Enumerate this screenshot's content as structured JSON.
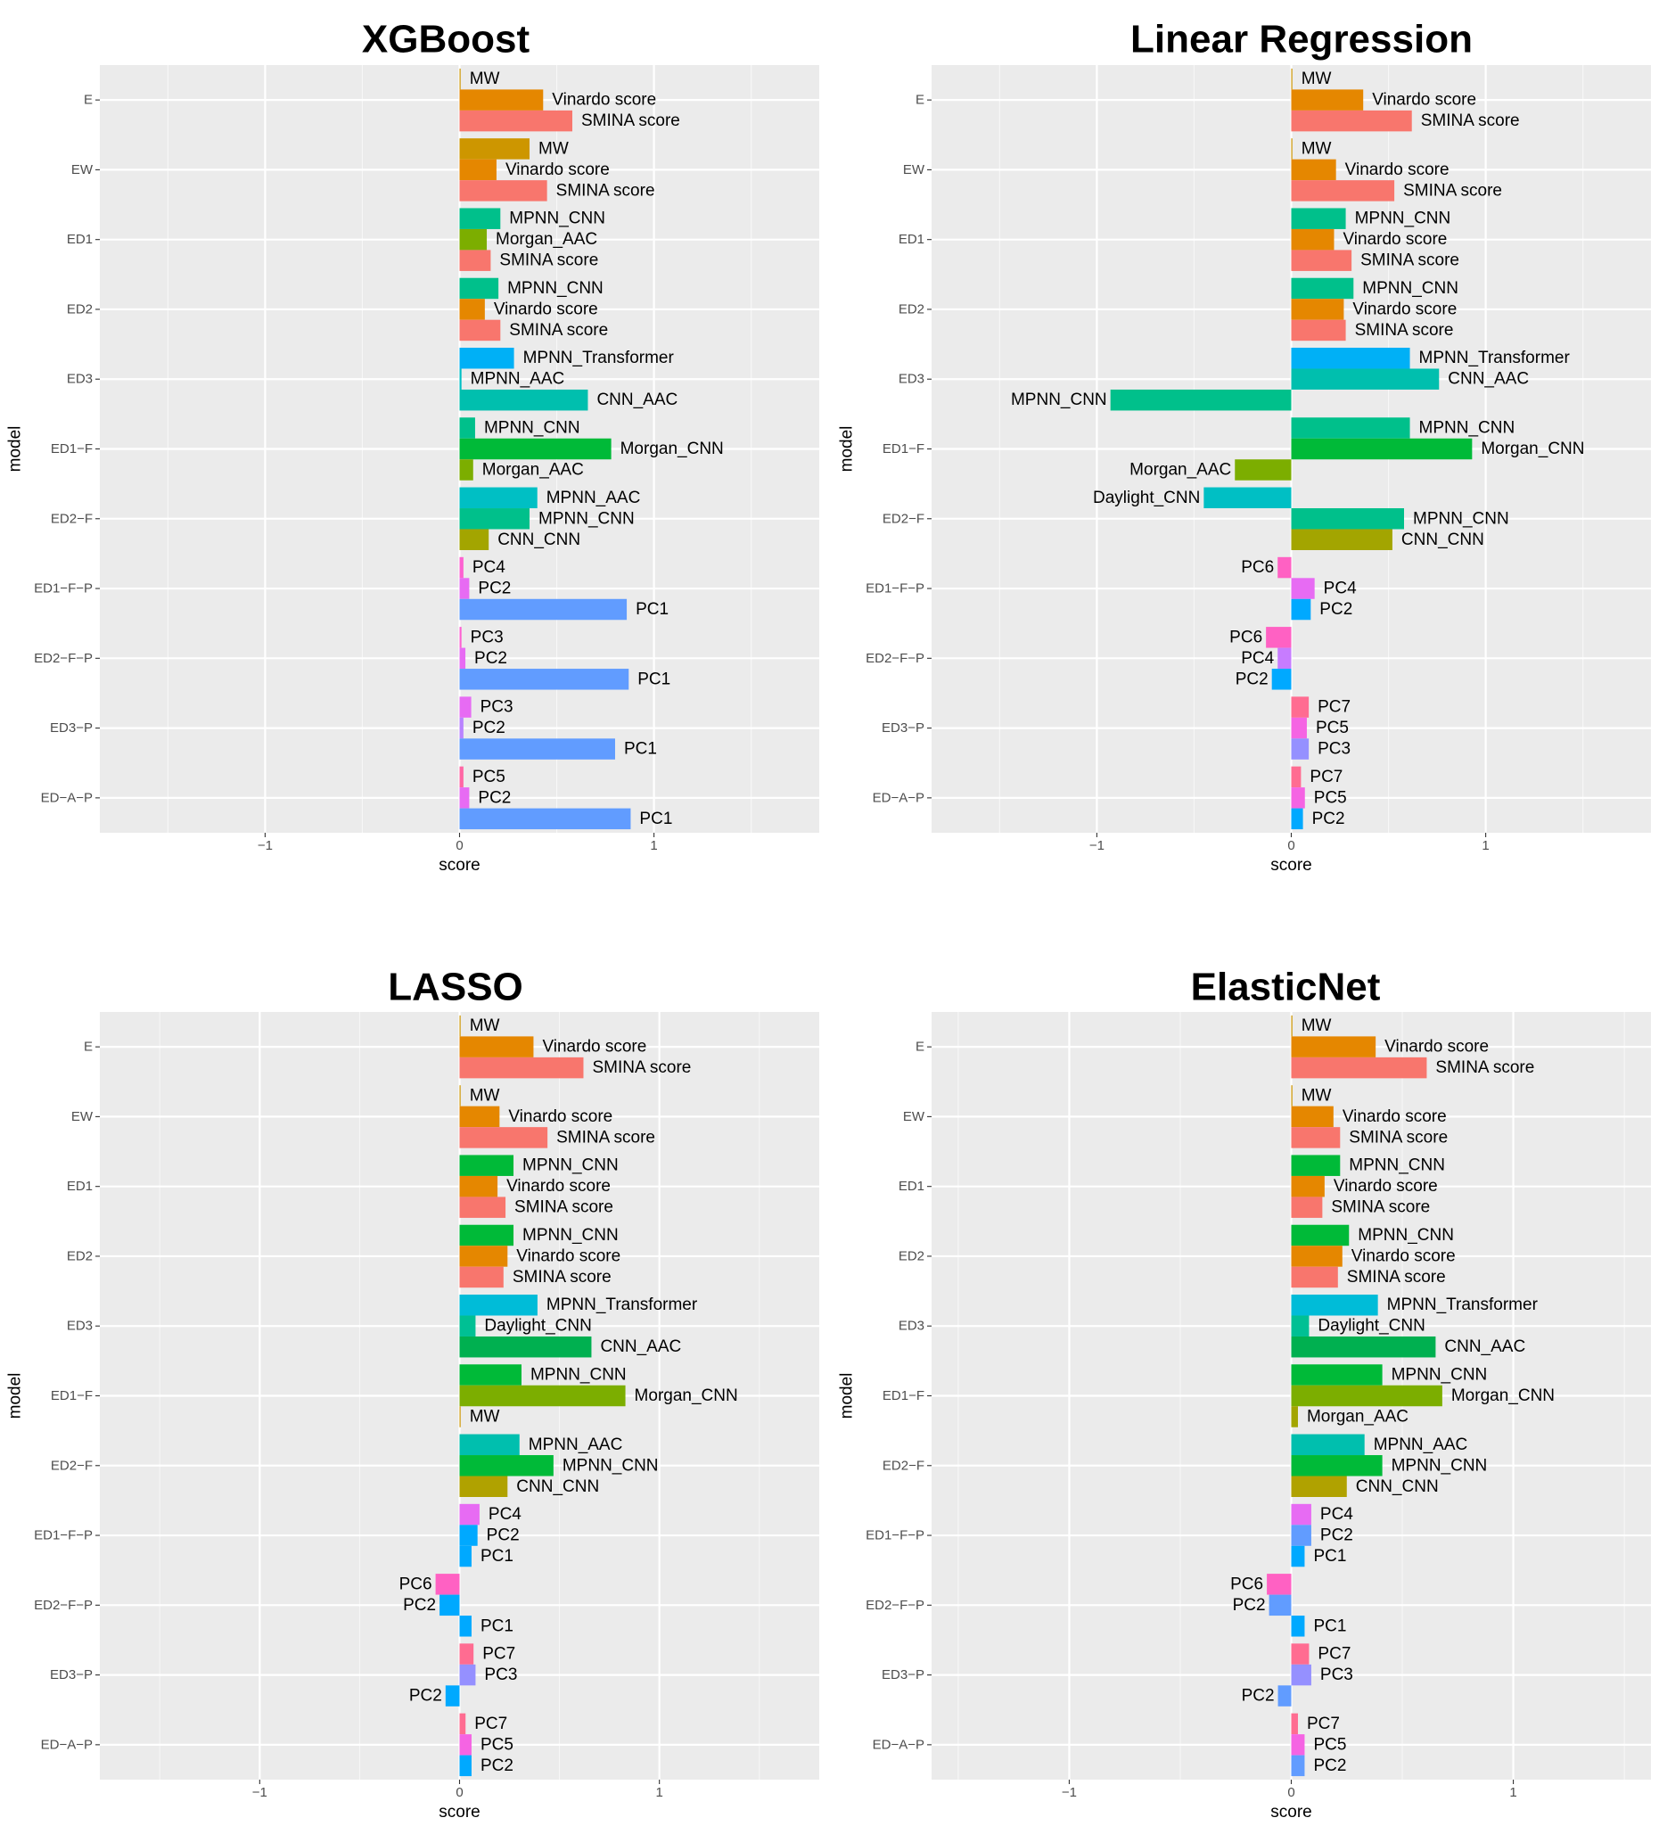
{
  "chart_data": [
    {
      "type": "bar",
      "orientation": "horizontal",
      "title": "XGBoost",
      "xlabel": "score",
      "ylabel": "model",
      "xlim": [
        -1.85,
        1.85
      ],
      "xticks": [
        -1,
        0,
        1
      ],
      "xtick_labels": [
        "−1",
        "0",
        "1"
      ],
      "categories": [
        "E",
        "EW",
        "ED1",
        "ED2",
        "ED3",
        "ED1−F",
        "ED2−F",
        "ED1−F−P",
        "ED2−F−P",
        "ED3−P",
        "ED−A−P"
      ],
      "groups": [
        [
          {
            "label": "MW",
            "value": 0.005,
            "color": "#cd9600"
          },
          {
            "label": "Vinardo score",
            "value": 0.43,
            "color": "#e58700"
          },
          {
            "label": "SMINA score",
            "value": 0.58,
            "color": "#f8766d"
          }
        ],
        [
          {
            "label": "MW",
            "value": 0.36,
            "color": "#cd9600"
          },
          {
            "label": "Vinardo score",
            "value": 0.19,
            "color": "#e58700"
          },
          {
            "label": "SMINA score",
            "value": 0.45,
            "color": "#f8766d"
          }
        ],
        [
          {
            "label": "MPNN_CNN",
            "value": 0.21,
            "color": "#00c08b"
          },
          {
            "label": "Morgan_AAC",
            "value": 0.14,
            "color": "#7cae00"
          },
          {
            "label": "SMINA score",
            "value": 0.16,
            "color": "#f8766d"
          }
        ],
        [
          {
            "label": "MPNN_CNN",
            "value": 0.2,
            "color": "#00c08b"
          },
          {
            "label": "Vinardo score",
            "value": 0.13,
            "color": "#e58700"
          },
          {
            "label": "SMINA score",
            "value": 0.21,
            "color": "#f8766d"
          }
        ],
        [
          {
            "label": "MPNN_Transformer",
            "value": 0.28,
            "color": "#00b0f6"
          },
          {
            "label": "MPNN_AAC",
            "value": 0.01,
            "color": "#00bfc4"
          },
          {
            "label": "CNN_AAC",
            "value": 0.66,
            "color": "#00bfae"
          }
        ],
        [
          {
            "label": "MPNN_CNN",
            "value": 0.08,
            "color": "#00c08b"
          },
          {
            "label": "Morgan_CNN",
            "value": 0.78,
            "color": "#00ba38"
          },
          {
            "label": "Morgan_AAC",
            "value": 0.07,
            "color": "#7cae00"
          }
        ],
        [
          {
            "label": "MPNN_AAC",
            "value": 0.4,
            "color": "#00bfc4"
          },
          {
            "label": "MPNN_CNN",
            "value": 0.36,
            "color": "#00c08b"
          },
          {
            "label": "CNN_CNN",
            "value": 0.15,
            "color": "#a3a500"
          }
        ],
        [
          {
            "label": "PC4",
            "value": 0.02,
            "color": "#fd61d1"
          },
          {
            "label": "PC2",
            "value": 0.05,
            "color": "#e76bf3"
          },
          {
            "label": "PC1",
            "value": 0.86,
            "color": "#619cff"
          }
        ],
        [
          {
            "label": "PC3",
            "value": 0.01,
            "color": "#fd61d1"
          },
          {
            "label": "PC2",
            "value": 0.03,
            "color": "#e76bf3"
          },
          {
            "label": "PC1",
            "value": 0.87,
            "color": "#619cff"
          }
        ],
        [
          {
            "label": "PC3",
            "value": 0.06,
            "color": "#e76bf3"
          },
          {
            "label": "PC2",
            "value": 0.02,
            "color": "#b983ff"
          },
          {
            "label": "PC1",
            "value": 0.8,
            "color": "#619cff"
          }
        ],
        [
          {
            "label": "PC5",
            "value": 0.02,
            "color": "#ff67a4"
          },
          {
            "label": "PC2",
            "value": 0.05,
            "color": "#e76bf3"
          },
          {
            "label": "PC1",
            "value": 0.88,
            "color": "#619cff"
          }
        ]
      ]
    },
    {
      "type": "bar",
      "orientation": "horizontal",
      "title": "Linear Regression",
      "xlabel": "score",
      "ylabel": "model",
      "xlim": [
        -1.85,
        1.85
      ],
      "xticks": [
        -1,
        0,
        1
      ],
      "xtick_labels": [
        "−1",
        "0",
        "1"
      ],
      "categories": [
        "E",
        "EW",
        "ED1",
        "ED2",
        "ED3",
        "ED1−F",
        "ED2−F",
        "ED1−F−P",
        "ED2−F−P",
        "ED3−P",
        "ED−A−P"
      ],
      "groups": [
        [
          {
            "label": "MW",
            "value": 0.005,
            "color": "#cd9600"
          },
          {
            "label": "Vinardo score",
            "value": 0.37,
            "color": "#e58700"
          },
          {
            "label": "SMINA score",
            "value": 0.62,
            "color": "#f8766d"
          }
        ],
        [
          {
            "label": "MW",
            "value": 0.005,
            "color": "#cd9600"
          },
          {
            "label": "Vinardo score",
            "value": 0.23,
            "color": "#e58700"
          },
          {
            "label": "SMINA score",
            "value": 0.53,
            "color": "#f8766d"
          }
        ],
        [
          {
            "label": "MPNN_CNN",
            "value": 0.28,
            "color": "#00c08b"
          },
          {
            "label": "Vinardo score",
            "value": 0.22,
            "color": "#e58700"
          },
          {
            "label": "SMINA score",
            "value": 0.31,
            "color": "#f8766d"
          }
        ],
        [
          {
            "label": "MPNN_CNN",
            "value": 0.32,
            "color": "#00c08b"
          },
          {
            "label": "Vinardo score",
            "value": 0.27,
            "color": "#e58700"
          },
          {
            "label": "SMINA score",
            "value": 0.28,
            "color": "#f8766d"
          }
        ],
        [
          {
            "label": "MPNN_Transformer",
            "value": 0.61,
            "color": "#00b0f6"
          },
          {
            "label": "CNN_AAC",
            "value": 0.76,
            "color": "#00bfae"
          },
          {
            "label": "MPNN_CNN",
            "value": -0.93,
            "color": "#00c08b"
          }
        ],
        [
          {
            "label": "MPNN_CNN",
            "value": 0.61,
            "color": "#00c08b"
          },
          {
            "label": "Morgan_CNN",
            "value": 0.93,
            "color": "#00ba38"
          },
          {
            "label": "Morgan_AAC",
            "value": -0.29,
            "color": "#7cae00"
          }
        ],
        [
          {
            "label": "Daylight_CNN",
            "value": -0.45,
            "color": "#00bfc4"
          },
          {
            "label": "MPNN_CNN",
            "value": 0.58,
            "color": "#00c08b"
          },
          {
            "label": "CNN_CNN",
            "value": 0.52,
            "color": "#a3a500"
          }
        ],
        [
          {
            "label": "PC6",
            "value": -0.07,
            "color": "#ff61c3"
          },
          {
            "label": "PC4",
            "value": 0.12,
            "color": "#e76bf3"
          },
          {
            "label": "PC2",
            "value": 0.1,
            "color": "#00a9ff"
          }
        ],
        [
          {
            "label": "PC6",
            "value": -0.13,
            "color": "#ff61c3"
          },
          {
            "label": "PC4",
            "value": -0.07,
            "color": "#c77cff"
          },
          {
            "label": "PC2",
            "value": -0.1,
            "color": "#00a9ff"
          }
        ],
        [
          {
            "label": "PC7",
            "value": 0.09,
            "color": "#ff6c91"
          },
          {
            "label": "PC5",
            "value": 0.08,
            "color": "#f564e3"
          },
          {
            "label": "PC3",
            "value": 0.09,
            "color": "#9590ff"
          }
        ],
        [
          {
            "label": "PC7",
            "value": 0.05,
            "color": "#ff6c91"
          },
          {
            "label": "PC5",
            "value": 0.07,
            "color": "#f564e3"
          },
          {
            "label": "PC2",
            "value": 0.06,
            "color": "#00a9ff"
          }
        ]
      ]
    },
    {
      "type": "bar",
      "orientation": "horizontal",
      "title": "LASSO",
      "xlabel": "score",
      "ylabel": "model",
      "xlim": [
        -1.8,
        1.8
      ],
      "xticks": [
        -1,
        0,
        1
      ],
      "xtick_labels": [
        "−1",
        "0",
        "1"
      ],
      "categories": [
        "E",
        "EW",
        "ED1",
        "ED2",
        "ED3",
        "ED1−F",
        "ED2−F",
        "ED1−F−P",
        "ED2−F−P",
        "ED3−P",
        "ED−A−P"
      ],
      "groups": [
        [
          {
            "label": "MW",
            "value": 0.005,
            "color": "#cd9600"
          },
          {
            "label": "Vinardo score",
            "value": 0.37,
            "color": "#e58700"
          },
          {
            "label": "SMINA score",
            "value": 0.62,
            "color": "#f8766d"
          }
        ],
        [
          {
            "label": "MW",
            "value": 0.005,
            "color": "#cd9600"
          },
          {
            "label": "Vinardo score",
            "value": 0.2,
            "color": "#e58700"
          },
          {
            "label": "SMINA score",
            "value": 0.44,
            "color": "#f8766d"
          }
        ],
        [
          {
            "label": "MPNN_CNN",
            "value": 0.27,
            "color": "#00ba38"
          },
          {
            "label": "Vinardo score",
            "value": 0.19,
            "color": "#e58700"
          },
          {
            "label": "SMINA score",
            "value": 0.23,
            "color": "#f8766d"
          }
        ],
        [
          {
            "label": "MPNN_CNN",
            "value": 0.27,
            "color": "#00ba38"
          },
          {
            "label": "Vinardo score",
            "value": 0.24,
            "color": "#e58700"
          },
          {
            "label": "SMINA score",
            "value": 0.22,
            "color": "#f8766d"
          }
        ],
        [
          {
            "label": "MPNN_Transformer",
            "value": 0.39,
            "color": "#00bcd8"
          },
          {
            "label": "Daylight_CNN",
            "value": 0.08,
            "color": "#00c094"
          },
          {
            "label": "CNN_AAC",
            "value": 0.66,
            "color": "#00b050"
          }
        ],
        [
          {
            "label": "MPNN_CNN",
            "value": 0.31,
            "color": "#00ba38"
          },
          {
            "label": "Morgan_CNN",
            "value": 0.83,
            "color": "#7cae00"
          },
          {
            "label": "MW",
            "value": 0.005,
            "color": "#cd9600"
          }
        ],
        [
          {
            "label": "MPNN_AAC",
            "value": 0.3,
            "color": "#00bfae"
          },
          {
            "label": "MPNN_CNN",
            "value": 0.47,
            "color": "#00ba38"
          },
          {
            "label": "CNN_CNN",
            "value": 0.24,
            "color": "#b0a200"
          }
        ],
        [
          {
            "label": "PC4",
            "value": 0.1,
            "color": "#e76bf3"
          },
          {
            "label": "PC2",
            "value": 0.09,
            "color": "#00a9ff"
          },
          {
            "label": "PC1",
            "value": 0.06,
            "color": "#00a9ff"
          }
        ],
        [
          {
            "label": "PC6",
            "value": -0.12,
            "color": "#ff61c3"
          },
          {
            "label": "PC2",
            "value": -0.1,
            "color": "#00a9ff"
          },
          {
            "label": "PC1",
            "value": 0.06,
            "color": "#00a9ff"
          }
        ],
        [
          {
            "label": "PC7",
            "value": 0.07,
            "color": "#ff6c91"
          },
          {
            "label": "PC3",
            "value": 0.08,
            "color": "#9590ff"
          },
          {
            "label": "PC2",
            "value": -0.07,
            "color": "#00a9ff"
          }
        ],
        [
          {
            "label": "PC7",
            "value": 0.03,
            "color": "#ff6c91"
          },
          {
            "label": "PC5",
            "value": 0.06,
            "color": "#f564e3"
          },
          {
            "label": "PC2",
            "value": 0.06,
            "color": "#00a9ff"
          }
        ]
      ]
    },
    {
      "type": "bar",
      "orientation": "horizontal",
      "title": "ElasticNet",
      "xlabel": "score",
      "ylabel": "model",
      "xlim": [
        -1.62,
        1.62
      ],
      "xticks": [
        -1,
        0,
        1
      ],
      "xtick_labels": [
        "−1",
        "0",
        "1"
      ],
      "categories": [
        "E",
        "EW",
        "ED1",
        "ED2",
        "ED3",
        "ED1−F",
        "ED2−F",
        "ED1−F−P",
        "ED2−F−P",
        "ED3−P",
        "ED−A−P"
      ],
      "groups": [
        [
          {
            "label": "MW",
            "value": 0.005,
            "color": "#cd9600"
          },
          {
            "label": "Vinardo score",
            "value": 0.38,
            "color": "#e58700"
          },
          {
            "label": "SMINA score",
            "value": 0.61,
            "color": "#f8766d"
          }
        ],
        [
          {
            "label": "MW",
            "value": 0.005,
            "color": "#cd9600"
          },
          {
            "label": "Vinardo score",
            "value": 0.19,
            "color": "#e58700"
          },
          {
            "label": "SMINA score",
            "value": 0.22,
            "color": "#f8766d"
          }
        ],
        [
          {
            "label": "MPNN_CNN",
            "value": 0.22,
            "color": "#00ba38"
          },
          {
            "label": "Vinardo score",
            "value": 0.15,
            "color": "#e58700"
          },
          {
            "label": "SMINA score",
            "value": 0.14,
            "color": "#f8766d"
          }
        ],
        [
          {
            "label": "MPNN_CNN",
            "value": 0.26,
            "color": "#00ba38"
          },
          {
            "label": "Vinardo score",
            "value": 0.23,
            "color": "#e58700"
          },
          {
            "label": "SMINA score",
            "value": 0.21,
            "color": "#f8766d"
          }
        ],
        [
          {
            "label": "MPNN_Transformer",
            "value": 0.39,
            "color": "#00bcd8"
          },
          {
            "label": "Daylight_CNN",
            "value": 0.08,
            "color": "#00c094"
          },
          {
            "label": "CNN_AAC",
            "value": 0.65,
            "color": "#00b050"
          }
        ],
        [
          {
            "label": "MPNN_CNN",
            "value": 0.41,
            "color": "#00ba38"
          },
          {
            "label": "Morgan_CNN",
            "value": 0.68,
            "color": "#7cae00"
          },
          {
            "label": "Morgan_AAC",
            "value": 0.03,
            "color": "#a3a500"
          }
        ],
        [
          {
            "label": "MPNN_AAC",
            "value": 0.33,
            "color": "#00bfae"
          },
          {
            "label": "MPNN_CNN",
            "value": 0.41,
            "color": "#00ba38"
          },
          {
            "label": "CNN_CNN",
            "value": 0.25,
            "color": "#b0a200"
          }
        ],
        [
          {
            "label": "PC4",
            "value": 0.09,
            "color": "#e76bf3"
          },
          {
            "label": "PC2",
            "value": 0.09,
            "color": "#619cff"
          },
          {
            "label": "PC1",
            "value": 0.06,
            "color": "#00a9ff"
          }
        ],
        [
          {
            "label": "PC6",
            "value": -0.11,
            "color": "#ff61c3"
          },
          {
            "label": "PC2",
            "value": -0.1,
            "color": "#619cff"
          },
          {
            "label": "PC1",
            "value": 0.06,
            "color": "#00a9ff"
          }
        ],
        [
          {
            "label": "PC7",
            "value": 0.08,
            "color": "#ff6c91"
          },
          {
            "label": "PC3",
            "value": 0.09,
            "color": "#9590ff"
          },
          {
            "label": "PC2",
            "value": -0.06,
            "color": "#619cff"
          }
        ],
        [
          {
            "label": "PC7",
            "value": 0.03,
            "color": "#ff6c91"
          },
          {
            "label": "PC5",
            "value": 0.06,
            "color": "#f564e3"
          },
          {
            "label": "PC2",
            "value": 0.06,
            "color": "#619cff"
          }
        ]
      ]
    }
  ]
}
